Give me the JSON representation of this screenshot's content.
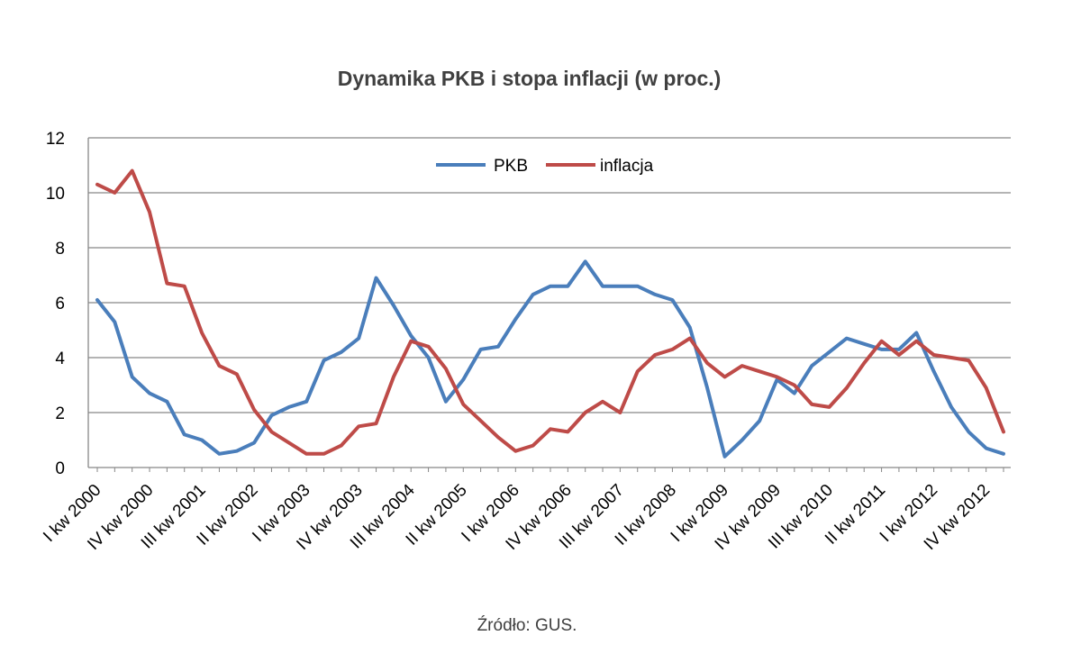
{
  "chart_data": {
    "type": "line",
    "title": "Dynamika PKB i stopa inflacji (w proc.)",
    "source": "Źródło: GUS.",
    "ylim": [
      0,
      12
    ],
    "yticks": [
      0,
      2,
      4,
      6,
      8,
      10,
      12
    ],
    "grid": true,
    "legend_position": "top",
    "x_tick_labels": [
      "I kw 2000",
      "IV kw 2000",
      "III kw 2001",
      "II kw 2002",
      "I kw 2003",
      "IV kw 2003",
      "III kw 2004",
      "II kw 2005",
      "I kw 2006",
      "IV kw 2006",
      "III kw 2007",
      "II kw 2008",
      "I kw 2009",
      "IV kw 2009",
      "III kw 2010",
      "II kw 2011",
      "I kw 2012",
      "IV kw 2012"
    ],
    "series": [
      {
        "name": "PKB",
        "color": "#4a7ebb",
        "values": [
          6.1,
          5.3,
          3.3,
          2.7,
          2.4,
          1.2,
          1.0,
          0.5,
          0.6,
          0.9,
          1.9,
          2.2,
          2.4,
          3.9,
          4.2,
          4.7,
          6.9,
          5.9,
          4.8,
          4.0,
          2.4,
          3.2,
          4.3,
          4.4,
          5.4,
          6.3,
          6.6,
          6.6,
          7.5,
          6.6,
          6.6,
          6.6,
          6.3,
          6.1,
          5.1,
          2.9,
          0.4,
          1.0,
          1.7,
          3.2,
          2.7,
          3.7,
          4.2,
          4.7,
          4.5,
          4.3,
          4.3,
          4.9,
          3.5,
          2.2,
          1.3,
          0.7,
          0.5
        ]
      },
      {
        "name": "inflacja",
        "color": "#be4b48",
        "values": [
          10.3,
          10.0,
          10.8,
          9.3,
          6.7,
          6.6,
          4.9,
          3.7,
          3.4,
          2.1,
          1.3,
          0.9,
          0.5,
          0.5,
          0.8,
          1.5,
          1.6,
          3.3,
          4.6,
          4.4,
          3.6,
          2.3,
          1.7,
          1.1,
          0.6,
          0.8,
          1.4,
          1.3,
          2.0,
          2.4,
          2.0,
          3.5,
          4.1,
          4.3,
          4.7,
          3.8,
          3.3,
          3.7,
          3.5,
          3.3,
          3.0,
          2.3,
          2.2,
          2.9,
          3.8,
          4.6,
          4.1,
          4.6,
          4.1,
          4.0,
          3.9,
          2.9,
          1.3
        ]
      }
    ]
  }
}
